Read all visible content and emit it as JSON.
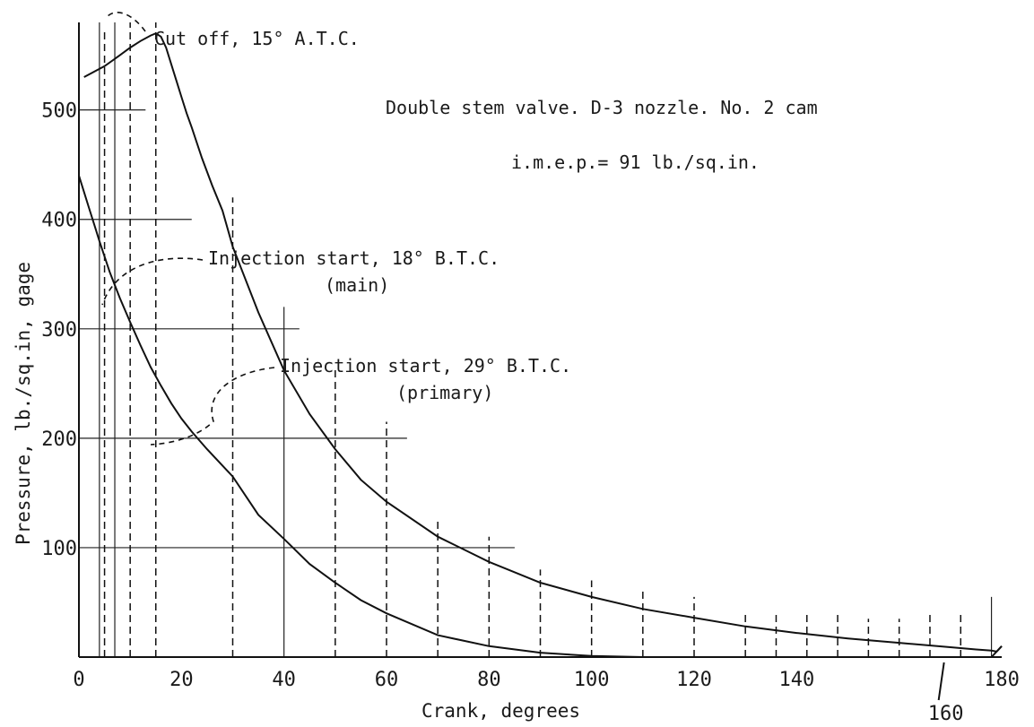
{
  "chart_data": {
    "type": "line",
    "title": "Double stem valve. D-3 nozzle. No. 2 cam",
    "subtitle": "i.m.e.p.= 91 lb./sq.in.",
    "xlabel": "Crank, degrees",
    "ylabel": "Pressure, lb./sq.in, gage",
    "xlim": [
      0,
      180
    ],
    "ylim": [
      0,
      580
    ],
    "x_ticks": [
      {
        "value": 0,
        "label": "0"
      },
      {
        "value": 20,
        "label": "20"
      },
      {
        "value": 40,
        "label": "40"
      },
      {
        "value": 60,
        "label": "60"
      },
      {
        "value": 80,
        "label": "80"
      },
      {
        "value": 100,
        "label": "100"
      },
      {
        "value": 120,
        "label": "120"
      },
      {
        "value": 140,
        "label": "140"
      },
      {
        "value": 180,
        "label": "180"
      }
    ],
    "x_extra_tick": {
      "value": 160,
      "label": "160"
    },
    "y_ticks": [
      {
        "value": 100,
        "label": "100"
      },
      {
        "value": 200,
        "label": "200"
      },
      {
        "value": 300,
        "label": "300"
      },
      {
        "value": 400,
        "label": "400"
      },
      {
        "value": 500,
        "label": "500"
      }
    ],
    "horizontal_guides": [
      {
        "y": 100,
        "x_end": 85
      },
      {
        "y": 200,
        "x_end": 64
      },
      {
        "y": 300,
        "x_end": 43
      },
      {
        "y": 400,
        "x_end": 22
      },
      {
        "y": 500,
        "x_end": 13
      }
    ],
    "vertical_guides": [
      {
        "x": 4,
        "y_top": 580,
        "style": "solid"
      },
      {
        "x": 5,
        "y_top": 575,
        "style": "dashed"
      },
      {
        "x": 7,
        "y_top": 580,
        "style": "solid"
      },
      {
        "x": 10,
        "y_top": 580,
        "style": "dashed"
      },
      {
        "x": 15,
        "y_top": 580,
        "style": "dashed"
      },
      {
        "x": 30,
        "y_top": 420,
        "style": "dashed"
      },
      {
        "x": 40,
        "y_top": 320,
        "style": "solid"
      },
      {
        "x": 50,
        "y_top": 265,
        "style": "dashed"
      },
      {
        "x": 60,
        "y_top": 215,
        "style": "dashed"
      },
      {
        "x": 70,
        "y_top": 125,
        "style": "dashed"
      },
      {
        "x": 80,
        "y_top": 110,
        "style": "dashed"
      },
      {
        "x": 90,
        "y_top": 80,
        "style": "dashed"
      },
      {
        "x": 100,
        "y_top": 70,
        "style": "dashed"
      },
      {
        "x": 110,
        "y_top": 60,
        "style": "dashed"
      },
      {
        "x": 120,
        "y_top": 55,
        "style": "dashed"
      },
      {
        "x": 130,
        "y_top": 40,
        "style": "dashed"
      },
      {
        "x": 136,
        "y_top": 40,
        "style": "dashed"
      },
      {
        "x": 142,
        "y_top": 40,
        "style": "dashed"
      },
      {
        "x": 148,
        "y_top": 40,
        "style": "dashed"
      },
      {
        "x": 154,
        "y_top": 35,
        "style": "dashed"
      },
      {
        "x": 160,
        "y_top": 35,
        "style": "dashed"
      },
      {
        "x": 166,
        "y_top": 40,
        "style": "dashed"
      },
      {
        "x": 172,
        "y_top": 40,
        "style": "dashed"
      },
      {
        "x": 178,
        "y_top": 55,
        "style": "solid"
      }
    ],
    "series": [
      {
        "name": "",
        "x": [
          1,
          5,
          8,
          10,
          12,
          14,
          15,
          16,
          17,
          18,
          19,
          20,
          21,
          22,
          24,
          26,
          28,
          30,
          35,
          40,
          45,
          50,
          55,
          60,
          70,
          80,
          90,
          100,
          110,
          120,
          130,
          140,
          150,
          160,
          170,
          175,
          178,
          179,
          180
        ],
        "y": [
          530,
          540,
          550,
          557,
          563,
          568,
          570,
          567,
          557,
          542,
          527,
          512,
          497,
          484,
          456,
          431,
          408,
          375,
          315,
          262,
          222,
          190,
          162,
          142,
          110,
          87,
          68,
          55,
          44,
          36,
          28,
          22,
          17,
          13,
          9,
          7,
          6,
          5,
          10
        ]
      },
      {
        "name": "",
        "x": [
          0,
          1,
          2,
          3,
          4,
          5,
          6,
          7,
          8,
          10,
          12,
          14,
          16,
          18,
          20,
          22,
          25,
          28,
          30,
          35,
          40,
          45,
          50,
          55,
          60,
          70,
          80,
          90,
          100,
          110,
          120,
          130,
          140,
          150,
          160,
          170,
          178,
          180
        ],
        "y": [
          440,
          425,
          410,
          395,
          380,
          366,
          352,
          340,
          328,
          306,
          285,
          265,
          248,
          232,
          218,
          206,
          190,
          175,
          165,
          130,
          108,
          85,
          68,
          52,
          40,
          20,
          10,
          4,
          1,
          0,
          0,
          0,
          0,
          0,
          0,
          0,
          0,
          10
        ]
      }
    ],
    "annotations": [
      {
        "lines": [
          "Cut off, 15° A.T.C."
        ],
        "points_to_x": 16,
        "points_to_y": 570
      },
      {
        "lines": [
          "Injection start, 18° B.T.C.",
          "(main)"
        ],
        "points_to_x": 4,
        "points_to_y": 313
      },
      {
        "lines": [
          "Injection start, 29° B.T.C.",
          "(primary)"
        ],
        "points_to_x": 25,
        "points_to_y": 190
      }
    ],
    "grid": false,
    "legend": "none"
  }
}
